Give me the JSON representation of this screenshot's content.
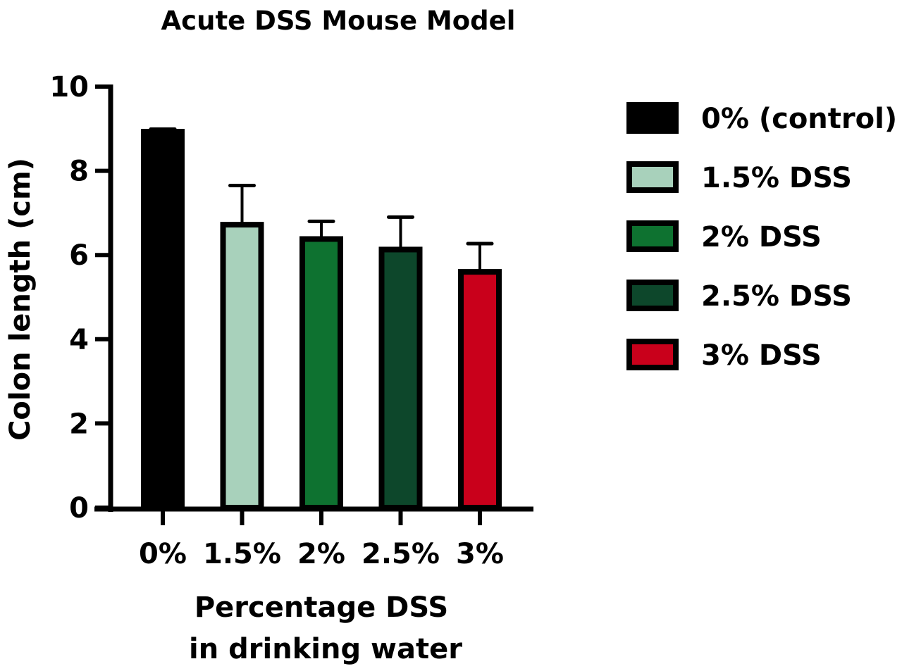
{
  "chart_data": {
    "type": "bar",
    "title": "Acute DSS Mouse Model",
    "xlabel": [
      "Percentage DSS",
      "in drinking water"
    ],
    "ylabel": "Colon length (cm)",
    "ylim": [
      0,
      10
    ],
    "yticks": [
      "0",
      "2",
      "4",
      "6",
      "8",
      "10"
    ],
    "categories": [
      "0%",
      "1.5%",
      "2%",
      "2.5%",
      "3%"
    ],
    "values": [
      8.93,
      6.72,
      6.38,
      6.13,
      5.6
    ],
    "error_upper": [
      8.99,
      7.65,
      6.8,
      6.9,
      6.27
    ],
    "colors": [
      "#000000",
      "#a8d1bb",
      "#0e7230",
      "#0d472b",
      "#c9001b"
    ],
    "legend": [
      "0% (control)",
      "1.5% DSS",
      "2% DSS",
      "2.5% DSS",
      "3% DSS"
    ],
    "legend_position": "right",
    "grid": false
  }
}
